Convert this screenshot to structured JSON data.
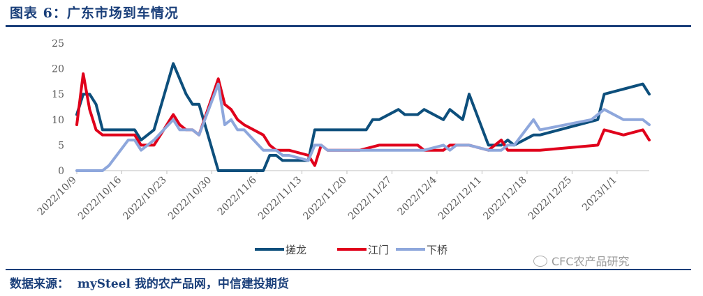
{
  "figure": {
    "title": "图表 6：广东市场到车情况",
    "source": "数据来源：  mySteel 我的农产品网，中信建投期货",
    "watermark": "CFC农产品研究"
  },
  "chart_data": {
    "type": "line",
    "title": "",
    "xlabel": "",
    "ylabel": "",
    "ylim": [
      0,
      25
    ],
    "yticks": [
      0,
      5,
      10,
      15,
      20,
      25
    ],
    "xlim": [
      "2022-10-09",
      "2023-01-06"
    ],
    "xticks": [
      "2022/10/9",
      "2022/10/16",
      "2022/10/23",
      "2022/10/30",
      "2022/11/6",
      "2022/11/13",
      "2022/11/20",
      "2022/11/27",
      "2022/12/4",
      "2022/12/11",
      "2022/12/18",
      "2022/12/25",
      "2023/1/1"
    ],
    "grid": false,
    "legend_position": "bottom",
    "series": [
      {
        "name": "搓龙",
        "color": "#0d4f7c",
        "x": [
          "2022-10-09",
          "2022-10-10",
          "2022-10-11",
          "2022-10-12",
          "2022-10-13",
          "2022-10-14",
          "2022-10-17",
          "2022-10-18",
          "2022-10-19",
          "2022-10-20",
          "2022-10-21",
          "2022-10-24",
          "2022-10-25",
          "2022-10-26",
          "2022-10-27",
          "2022-10-28",
          "2022-10-31",
          "2022-11-01",
          "2022-11-02",
          "2022-11-03",
          "2022-11-04",
          "2022-11-07",
          "2022-11-08",
          "2022-11-09",
          "2022-11-10",
          "2022-11-11",
          "2022-11-14",
          "2022-11-15",
          "2022-11-16",
          "2022-11-17",
          "2022-11-18",
          "2022-11-21",
          "2022-11-22",
          "2022-11-23",
          "2022-11-24",
          "2022-11-25",
          "2022-11-28",
          "2022-11-29",
          "2022-11-30",
          "2022-12-01",
          "2022-12-02",
          "2022-12-05",
          "2022-12-06",
          "2022-12-07",
          "2022-12-08",
          "2022-12-09",
          "2022-12-12",
          "2022-12-13",
          "2022-12-14",
          "2022-12-15",
          "2022-12-16",
          "2022-12-19",
          "2022-12-20",
          "2022-12-29",
          "2022-12-30",
          "2023-01-05",
          "2023-01-06"
        ],
        "values": [
          11,
          15,
          15,
          13,
          8,
          8,
          8,
          8,
          6,
          7,
          8,
          21,
          18,
          15,
          13,
          13,
          0,
          0,
          0,
          0,
          0,
          0,
          3,
          3,
          2,
          2,
          2,
          8,
          8,
          8,
          8,
          8,
          8,
          8,
          10,
          10,
          12,
          11,
          11,
          11,
          12,
          10,
          12,
          11,
          10,
          15,
          5,
          5,
          5,
          6,
          5,
          7,
          7,
          10,
          15,
          17,
          15
        ]
      },
      {
        "name": "江门",
        "color": "#e0001b",
        "x": [
          "2022-10-09",
          "2022-10-10",
          "2022-10-11",
          "2022-10-12",
          "2022-10-13",
          "2022-10-14",
          "2022-10-17",
          "2022-10-18",
          "2022-10-19",
          "2022-10-20",
          "2022-10-21",
          "2022-10-24",
          "2022-10-25",
          "2022-10-26",
          "2022-10-27",
          "2022-10-28",
          "2022-10-31",
          "2022-11-01",
          "2022-11-02",
          "2022-11-03",
          "2022-11-04",
          "2022-11-07",
          "2022-11-08",
          "2022-11-09",
          "2022-11-10",
          "2022-11-11",
          "2022-11-14",
          "2022-11-15",
          "2022-11-16",
          "2022-11-17",
          "2022-11-18",
          "2022-11-21",
          "2022-11-22",
          "2022-11-25",
          "2022-11-28",
          "2022-11-29",
          "2022-11-30",
          "2022-12-01",
          "2022-12-02",
          "2022-12-05",
          "2022-12-06",
          "2022-12-07",
          "2022-12-08",
          "2022-12-09",
          "2022-12-12",
          "2022-12-13",
          "2022-12-14",
          "2022-12-15",
          "2022-12-16",
          "2022-12-19",
          "2022-12-20",
          "2022-12-29",
          "2022-12-30",
          "2023-01-02",
          "2023-01-05",
          "2023-01-06"
        ],
        "values": [
          9,
          19,
          12,
          8,
          7,
          7,
          7,
          7,
          5,
          5,
          5,
          11,
          9,
          8,
          8,
          7,
          18,
          13,
          12,
          10,
          9,
          7,
          5,
          4,
          4,
          4,
          3,
          1,
          5,
          4,
          4,
          4,
          4,
          5,
          5,
          5,
          5,
          5,
          4,
          4,
          5,
          5,
          5,
          5,
          4,
          5,
          6,
          4,
          4,
          4,
          4,
          5,
          8,
          7,
          8,
          6
        ]
      },
      {
        "name": "下桥",
        "color": "#8ea7dc",
        "x": [
          "2022-10-09",
          "2022-10-10",
          "2022-10-11",
          "2022-10-12",
          "2022-10-13",
          "2022-10-14",
          "2022-10-17",
          "2022-10-18",
          "2022-10-19",
          "2022-10-20",
          "2022-10-21",
          "2022-10-24",
          "2022-10-25",
          "2022-10-26",
          "2022-10-27",
          "2022-10-28",
          "2022-10-31",
          "2022-11-01",
          "2022-11-02",
          "2022-11-03",
          "2022-11-04",
          "2022-11-07",
          "2022-11-08",
          "2022-11-09",
          "2022-11-10",
          "2022-11-11",
          "2022-11-14",
          "2022-11-15",
          "2022-11-16",
          "2022-11-17",
          "2022-11-18",
          "2022-11-21",
          "2022-11-22",
          "2022-11-25",
          "2022-11-28",
          "2022-11-29",
          "2022-11-30",
          "2022-12-01",
          "2022-12-02",
          "2022-12-05",
          "2022-12-06",
          "2022-12-07",
          "2022-12-08",
          "2022-12-09",
          "2022-12-12",
          "2022-12-13",
          "2022-12-14",
          "2022-12-15",
          "2022-12-16",
          "2022-12-19",
          "2022-12-20",
          "2022-12-28",
          "2022-12-29",
          "2022-12-30",
          "2023-01-02",
          "2023-01-05",
          "2023-01-06"
        ],
        "values": [
          0,
          0,
          0,
          0,
          0,
          1,
          6,
          6,
          4,
          5,
          6,
          10,
          8,
          8,
          8,
          7,
          17,
          9,
          10,
          8,
          8,
          4,
          4,
          4,
          3,
          3,
          2,
          5,
          5,
          4,
          4,
          4,
          4,
          4,
          4,
          4,
          4,
          4,
          4,
          5,
          4,
          5,
          5,
          5,
          4,
          4,
          4,
          5,
          5,
          10,
          8,
          10,
          11,
          12,
          10,
          10,
          9
        ]
      }
    ]
  }
}
